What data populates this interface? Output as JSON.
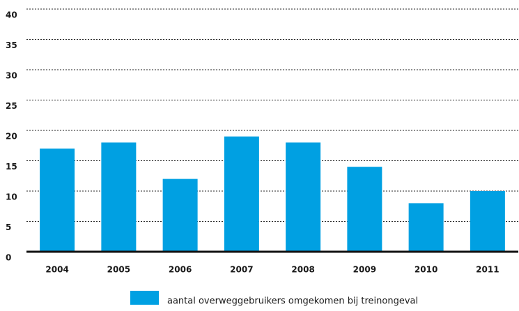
{
  "chart_data": {
    "type": "bar",
    "categories": [
      "2004",
      "2005",
      "2006",
      "2007",
      "2008",
      "2009",
      "2010",
      "2011"
    ],
    "series": [
      {
        "name": "aantal overweggebruikers omgekomen bij treinongeval",
        "color": "#00a0e2",
        "values": [
          17,
          18,
          12,
          19,
          18,
          14,
          8,
          10
        ]
      }
    ],
    "ylim": [
      0,
      40
    ],
    "yticks": [
      0,
      5,
      10,
      15,
      20,
      25,
      30,
      35,
      40
    ],
    "grid": true
  }
}
